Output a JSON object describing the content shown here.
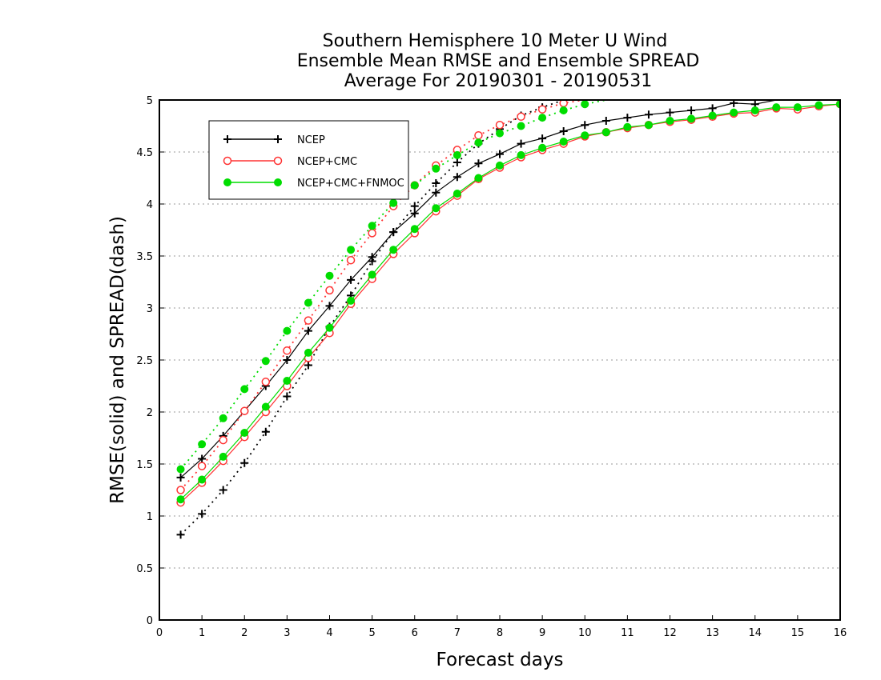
{
  "chart_data": {
    "type": "line",
    "title_lines": [
      "Southern Hemisphere 10 Meter U Wind",
      "Ensemble Mean RMSE and Ensemble SPREAD",
      "Average For 20190301 - 20190531"
    ],
    "xlabel": "Forecast days",
    "ylabel": "RMSE(solid) and SPREAD(dash)",
    "xlim": [
      0,
      16
    ],
    "ylim": [
      0,
      5
    ],
    "xticks": [
      "0",
      "1",
      "2",
      "3",
      "4",
      "5",
      "6",
      "7",
      "8",
      "9",
      "10",
      "11",
      "12",
      "13",
      "14",
      "15",
      "16"
    ],
    "yticks": [
      "0",
      "0.5",
      "1",
      "1.5",
      "2",
      "2.5",
      "3",
      "3.5",
      "4",
      "4.5",
      "5"
    ],
    "grid": "horizontal dotted",
    "legend_position": "top-left",
    "x": [
      0.5,
      1,
      1.5,
      2,
      2.5,
      3,
      3.5,
      4,
      4.5,
      5,
      5.5,
      6,
      6.5,
      7,
      7.5,
      8,
      8.5,
      9,
      9.5,
      10,
      10.5,
      11,
      11.5,
      12,
      12.5,
      13,
      13.5,
      14,
      14.5,
      15,
      15.5,
      16
    ],
    "series": [
      {
        "name": "NCEP",
        "color": "#000000",
        "marker": "plus",
        "rmse": [
          1.37,
          1.55,
          1.77,
          2.01,
          2.25,
          2.5,
          2.78,
          3.02,
          3.27,
          3.49,
          3.73,
          3.91,
          4.11,
          4.26,
          4.39,
          4.48,
          4.58,
          4.63,
          4.7,
          4.76,
          4.8,
          4.83,
          4.86,
          4.88,
          4.9,
          4.92,
          4.97,
          4.96,
          5.0,
          5.0,
          5.0,
          5.0
        ],
        "spread": [
          0.82,
          1.02,
          1.25,
          1.51,
          1.81,
          2.15,
          2.45,
          2.82,
          3.12,
          3.45,
          3.73,
          3.98,
          4.2,
          4.4,
          4.58,
          4.72,
          4.85,
          4.93,
          5.0,
          5.0,
          5.0,
          5.0,
          5.0,
          5.0,
          5.0,
          5.0,
          5.0,
          5.0,
          5.0,
          5.0,
          5.0,
          5.0
        ]
      },
      {
        "name": "NCEP+CMC",
        "color": "#ff3333",
        "marker": "circle-open",
        "rmse": [
          1.13,
          1.32,
          1.53,
          1.76,
          2.0,
          2.25,
          2.52,
          2.76,
          3.04,
          3.28,
          3.52,
          3.72,
          3.93,
          4.08,
          4.24,
          4.35,
          4.45,
          4.52,
          4.58,
          4.65,
          4.69,
          4.73,
          4.76,
          4.79,
          4.81,
          4.84,
          4.87,
          4.88,
          4.92,
          4.91,
          4.94,
          4.96
        ],
        "spread": [
          1.25,
          1.48,
          1.73,
          2.01,
          2.29,
          2.59,
          2.88,
          3.17,
          3.46,
          3.72,
          3.98,
          4.18,
          4.37,
          4.52,
          4.66,
          4.76,
          4.84,
          4.91,
          4.97,
          5.0,
          5.0,
          5.0,
          5.0,
          5.0,
          5.0,
          5.0,
          5.0,
          5.0,
          5.0,
          5.0,
          5.0,
          5.0
        ]
      },
      {
        "name": "NCEP+CMC+FNMOC",
        "color": "#00dd00",
        "marker": "circle-filled",
        "rmse": [
          1.16,
          1.35,
          1.57,
          1.8,
          2.05,
          2.3,
          2.57,
          2.81,
          3.07,
          3.32,
          3.56,
          3.76,
          3.96,
          4.1,
          4.25,
          4.37,
          4.47,
          4.54,
          4.6,
          4.66,
          4.69,
          4.74,
          4.76,
          4.8,
          4.82,
          4.85,
          4.88,
          4.9,
          4.93,
          4.93,
          4.95,
          4.96
        ],
        "spread": [
          1.45,
          1.69,
          1.94,
          2.22,
          2.49,
          2.78,
          3.05,
          3.31,
          3.56,
          3.79,
          4.01,
          4.18,
          4.34,
          4.47,
          4.59,
          4.68,
          4.75,
          4.83,
          4.9,
          4.96,
          5.0,
          5.0,
          5.0,
          5.0,
          5.0,
          5.0,
          5.0,
          5.0,
          5.0,
          5.0,
          5.0,
          5.0
        ]
      }
    ]
  }
}
